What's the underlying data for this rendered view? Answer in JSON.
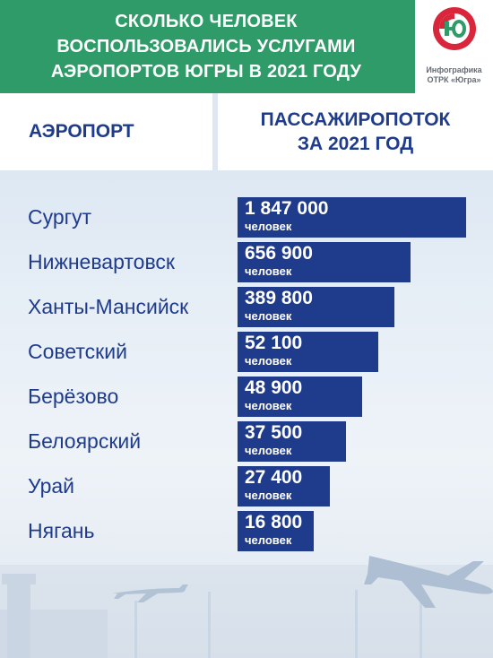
{
  "header": {
    "title_lines": [
      "СКОЛЬКО ЧЕЛОВЕК",
      "ВОСПОЛЬЗОВАЛИСЬ УСЛУГАМИ",
      "АЭРОПОРТОВ ЮГРЫ В 2021 ГОДУ"
    ],
    "logo_caption_lines": [
      "Инфографика",
      "ОТРК «Югра»"
    ]
  },
  "columns": {
    "airport": "АЭРОПОРТ",
    "traffic_lines": [
      "ПАССАЖИРОПОТОК",
      "ЗА 2021 ГОД"
    ]
  },
  "unit_label": "человек",
  "colors": {
    "header_green": "#2e9b68",
    "bar_blue": "#1f3b8c",
    "logo_red": "#d9263a"
  },
  "chart_data": {
    "type": "bar",
    "orientation": "horizontal",
    "categories": [
      "Сургут",
      "Нижневартовск",
      "Ханты-Мансийск",
      "Советский",
      "Берёзово",
      "Белоярский",
      "Урай",
      "Нягань"
    ],
    "value_labels": [
      "1 847 000",
      "656 900",
      "389 800",
      "52 100",
      "48 900",
      "37 500",
      "27 400",
      "16 800"
    ],
    "values": [
      1847000,
      656900,
      389800,
      52100,
      48900,
      37500,
      27400,
      16800
    ],
    "title": "СКОЛЬКО ЧЕЛОВЕК ВОСПОЛЬЗОВАЛИСЬ УСЛУГАМИ АЭРОПОРТОВ ЮГРЫ В 2021 ГОДУ",
    "xlabel": "ПАССАЖИРОПОТОК ЗА 2021 ГОД",
    "ylabel": "АЭРОПОРТ",
    "grid": false,
    "legend": "none"
  }
}
